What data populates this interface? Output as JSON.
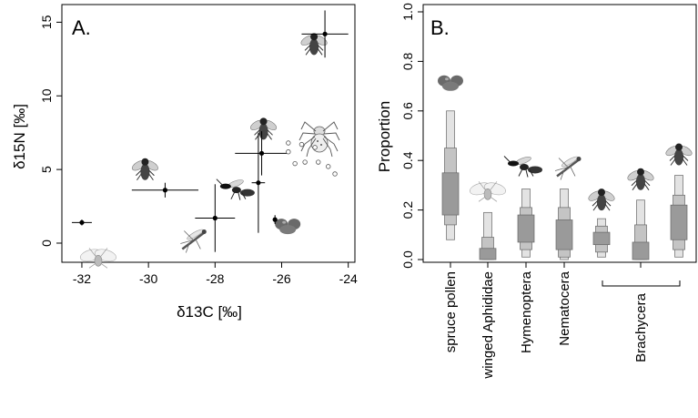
{
  "chart_data": [
    {
      "type": "scatter",
      "panel_label": "A.",
      "xlabel": "δ13C [‰]",
      "ylabel": "δ15N [‰]",
      "xlim": [
        -32.6,
        -23.8
      ],
      "ylim": [
        -1.3,
        16.2
      ],
      "x_ticks": [
        -32,
        -30,
        -28,
        -26,
        -24
      ],
      "y_ticks": [
        0,
        5,
        10,
        15
      ],
      "grid": false,
      "points": [
        {
          "group": "winged Aphididae",
          "x": -32.0,
          "y": 1.4,
          "x_err": 0.3,
          "y_err": 0.2,
          "icon": "aphid-icon"
        },
        {
          "group": "Brachycera",
          "x": -29.5,
          "y": 3.6,
          "x_err": 1.0,
          "y_err": 0.5,
          "icon": "fly-icon"
        },
        {
          "group": "Nematocera",
          "x": -28.0,
          "y": 1.7,
          "x_err": 0.6,
          "y_err": 2.3,
          "icon": "mosquito-icon"
        },
        {
          "group": "Hymenoptera",
          "x": -26.7,
          "y": 4.1,
          "x_err": 0.2,
          "y_err": 3.4,
          "icon": "wasp-icon"
        },
        {
          "group": "Brachycera",
          "x": -26.6,
          "y": 6.1,
          "x_err": 0.8,
          "y_err": 1.5,
          "icon": "fly-icon"
        },
        {
          "group": "spruce pollen",
          "x": -26.2,
          "y": 1.6,
          "x_err": 0.05,
          "y_err": 0.3,
          "icon": "pollen-icon"
        },
        {
          "group": "Brachycera",
          "x": -24.7,
          "y": 14.2,
          "x_err": 0.7,
          "y_err": 1.6,
          "icon": "fly-icon"
        }
      ],
      "spider_values": [
        {
          "x": -25.8,
          "y": 6.8
        },
        {
          "x": -25.8,
          "y": 6.2
        },
        {
          "x": -25.4,
          "y": 6.7
        },
        {
          "x": -25.0,
          "y": 6.5
        },
        {
          "x": -25.6,
          "y": 5.4
        },
        {
          "x": -25.3,
          "y": 5.5
        },
        {
          "x": -24.9,
          "y": 5.5
        },
        {
          "x": -24.6,
          "y": 5.2
        },
        {
          "x": -24.4,
          "y": 4.7
        }
      ],
      "spider_icon": "spider-icon"
    },
    {
      "type": "box",
      "panel_label": "B.",
      "ylabel": "Proportion",
      "ylim": [
        0,
        1.0
      ],
      "y_ticks": [
        0.0,
        0.2,
        0.4,
        0.6,
        0.8,
        1.0
      ],
      "y_tick_labels": [
        "0.0",
        "0.2",
        "0.4",
        "0.6",
        "0.8",
        "1.0"
      ],
      "categories": [
        "spruce pollen",
        "winged Aphididae",
        "Hymenoptera",
        "Nematocera",
        "Brachycera"
      ],
      "group_bracket": {
        "label": "Brachycera",
        "covers": "last three boxes"
      },
      "boxes": [
        {
          "category": "spruce pollen",
          "p01": 0.08,
          "p99": 0.6,
          "p05": 0.14,
          "p95": 0.45,
          "p25": 0.18,
          "p75": 0.35,
          "icon": "pollen-icon"
        },
        {
          "category": "winged Aphididae",
          "p01": 0.0,
          "p99": 0.19,
          "p05": 0.0,
          "p95": 0.09,
          "p25": 0.0,
          "p75": 0.045,
          "icon": "aphid-icon"
        },
        {
          "category": "Hymenoptera",
          "p01": 0.01,
          "p99": 0.285,
          "p05": 0.04,
          "p95": 0.21,
          "p25": 0.07,
          "p75": 0.18,
          "icon": "wasp-icon"
        },
        {
          "category": "Nematocera",
          "p01": 0.0,
          "p99": 0.285,
          "p05": 0.01,
          "p95": 0.21,
          "p25": 0.04,
          "p75": 0.16,
          "icon": "mosquito-icon"
        },
        {
          "category": "Brachycera",
          "p01": 0.01,
          "p99": 0.165,
          "p05": 0.03,
          "p95": 0.135,
          "p25": 0.06,
          "p75": 0.11,
          "icon": "fly-icon"
        },
        {
          "category": "Brachycera",
          "p01": 0.0,
          "p99": 0.24,
          "p05": 0.0,
          "p95": 0.14,
          "p25": 0.0,
          "p75": 0.07,
          "icon": "fly-icon"
        },
        {
          "category": "Brachycera",
          "p01": 0.01,
          "p99": 0.34,
          "p05": 0.04,
          "p95": 0.26,
          "p25": 0.08,
          "p75": 0.22,
          "icon": "fly-icon"
        }
      ]
    }
  ]
}
